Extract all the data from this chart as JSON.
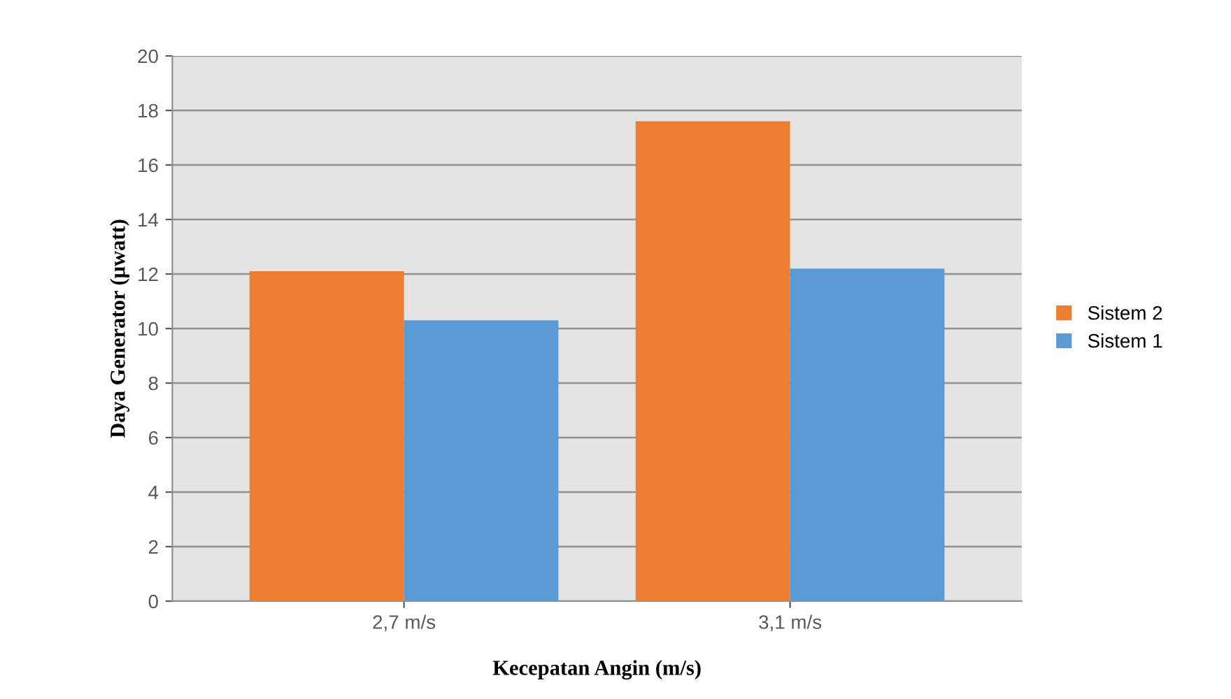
{
  "chart_data": {
    "type": "bar",
    "xlabel": "Kecepatan Angin (m/s)",
    "ylabel": "Daya Generator (μwatt)",
    "categories": [
      "2,7 m/s",
      "3,1 m/s"
    ],
    "series": [
      {
        "name": "Sistem 2",
        "color": "#ed7d31",
        "values": [
          12.1,
          17.6
        ]
      },
      {
        "name": "Sistem 1",
        "color": "#5b9bd5",
        "values": [
          10.3,
          12.2
        ]
      }
    ],
    "ylim": [
      0,
      20
    ],
    "yticks": [
      0,
      2,
      4,
      6,
      8,
      10,
      12,
      14,
      16,
      18,
      20
    ],
    "grid": "y",
    "legend": "right"
  }
}
